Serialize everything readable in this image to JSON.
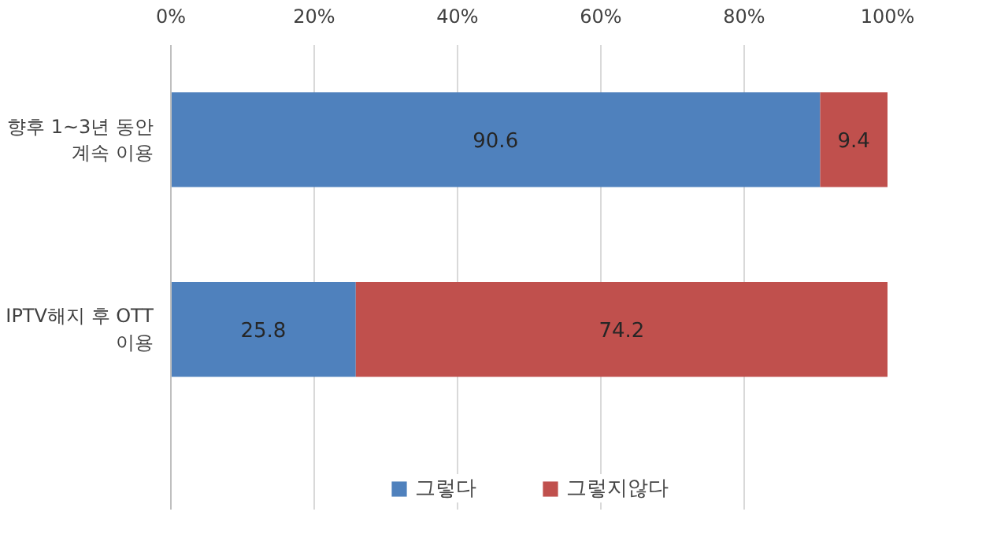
{
  "chart_data": {
    "type": "bar",
    "orientation": "horizontal",
    "stacked": true,
    "categories": [
      "향후 1~3년 동안\n계속 이용",
      "IPTV해지 후 OTT\n이용"
    ],
    "series": [
      {
        "name": "그렇다",
        "color": "#4f81bd",
        "values": [
          90.6,
          25.8
        ]
      },
      {
        "name": "그렇지않다",
        "color": "#c0504d",
        "values": [
          9.4,
          74.2
        ]
      }
    ],
    "xlim": [
      0,
      100
    ],
    "xticks": [
      {
        "value": 0,
        "label": "0%"
      },
      {
        "value": 20,
        "label": "20%"
      },
      {
        "value": 40,
        "label": "40%"
      },
      {
        "value": 60,
        "label": "60%"
      },
      {
        "value": 80,
        "label": "80%"
      },
      {
        "value": 100,
        "label": "100%"
      }
    ],
    "grid": "x",
    "legend": "bottom",
    "data_labels": true
  }
}
